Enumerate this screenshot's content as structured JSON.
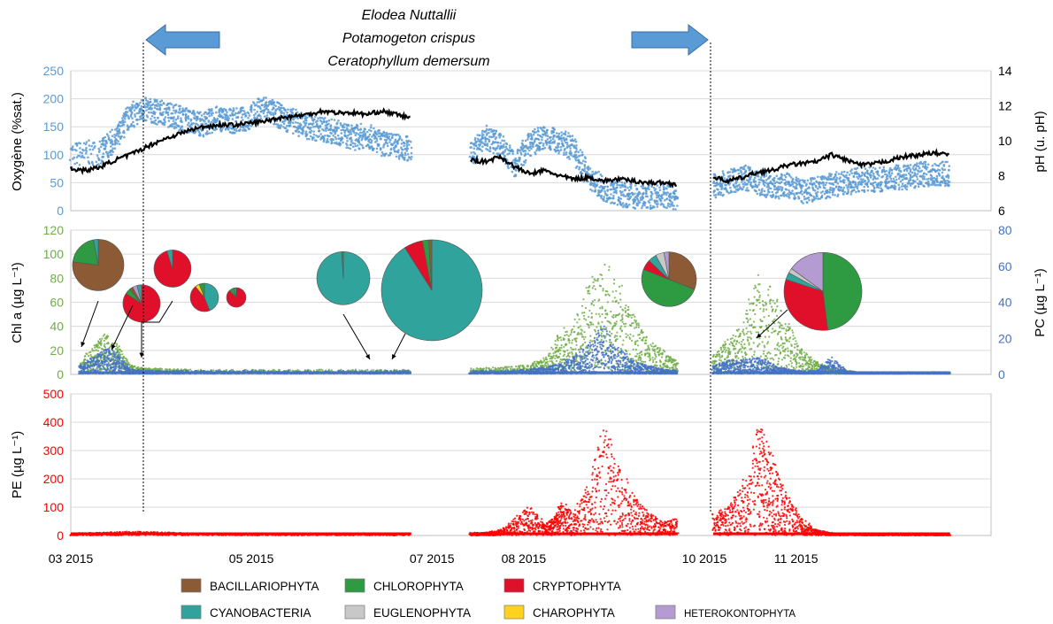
{
  "annotation": {
    "species": [
      "Elodea Nuttallii",
      "Potamogeton crispus",
      "Ceratophyllum demersum"
    ]
  },
  "colors": {
    "oxygen": "#5b9bd5",
    "ph": "#000000",
    "chla": "#70ad47",
    "pc": "#4472c4",
    "pe": "#ff0000",
    "arrow_fill": "#5b9bd5",
    "arrow_stroke": "#3a6ea5"
  },
  "x_axis": {
    "ticks": [
      {
        "t": 0,
        "label": "03 2015"
      },
      {
        "t": 61,
        "label": "05 2015"
      },
      {
        "t": 122,
        "label": "07 2015"
      },
      {
        "t": 153,
        "label": "08 2015"
      },
      {
        "t": 214,
        "label": "10 2015"
      },
      {
        "t": 245,
        "label": "11 2015"
      }
    ],
    "range_days": [
      0,
      300
    ]
  },
  "legend": {
    "items": [
      {
        "label": "BACILLARIOPHYTA",
        "color": "#8c5a34"
      },
      {
        "label": "CHLOROPHYTA",
        "color": "#2e9a41"
      },
      {
        "label": "CRYPTOPHYTA",
        "color": "#e0102a"
      },
      {
        "label": "CYANOBACTERIA",
        "color": "#30a39c"
      },
      {
        "label": "EUGLENOPHYTA",
        "color": "#c8c8c8"
      },
      {
        "label": "CHAROPHYTA",
        "color": "#ffd21f"
      },
      {
        "label": "HETEROKONTOPHYTA",
        "color": "#b49bd1"
      }
    ]
  },
  "chart_data": [
    {
      "type": "scatter",
      "ylabel": "Oxygène (%sat.)",
      "y2label": "pH (u. pH)",
      "ylim": [
        0,
        250
      ],
      "y2lim": [
        6,
        14
      ],
      "yticks": [
        0,
        50,
        100,
        150,
        200,
        250
      ],
      "y2ticks": [
        6,
        8,
        10,
        12,
        14
      ],
      "series": [
        {
          "axis": "left",
          "segments": [
            {
              "x": [
                0,
                10,
                15,
                20,
                25,
                30,
                35,
                40,
                45,
                50,
                55,
                60,
                65,
                70,
                75,
                80,
                85,
                90,
                95,
                100,
                105,
                110,
                115
              ],
              "y": [
                100,
                105,
                125,
                170,
                180,
                175,
                170,
                160,
                155,
                165,
                160,
                165,
                185,
                170,
                160,
                150,
                145,
                140,
                130,
                135,
                120,
                115,
                110
              ]
            },
            {
              "x": [
                135,
                140,
                145,
                150,
                155,
                160,
                165,
                170,
                175,
                180,
                185,
                190,
                195,
                200,
                205
              ],
              "y": [
                100,
                130,
                120,
                80,
                120,
                130,
                125,
                110,
                60,
                40,
                30,
                25,
                25,
                30,
                20
              ]
            },
            {
              "x": [
                217,
                222,
                227,
                232,
                237,
                242,
                247,
                252,
                257,
                262,
                267,
                272,
                277,
                282,
                287,
                292,
                297
              ],
              "y": [
                45,
                50,
                60,
                50,
                40,
                45,
                35,
                40,
                45,
                50,
                55,
                55,
                60,
                60,
                65,
                65,
                65
              ]
            }
          ]
        },
        {
          "axis": "right",
          "segments": [
            {
              "x": [
                0,
                5,
                10,
                15,
                20,
                25,
                30,
                35,
                40,
                45,
                50,
                55,
                60,
                65,
                70,
                75,
                80,
                85,
                90,
                95,
                100,
                105,
                110,
                115
              ],
              "y": [
                8.4,
                8.3,
                8.5,
                8.9,
                9.2,
                9.6,
                10.0,
                10.3,
                10.6,
                10.8,
                10.9,
                10.9,
                11.0,
                11.1,
                11.3,
                11.4,
                11.5,
                11.7,
                11.6,
                11.6,
                11.5,
                11.7,
                11.5,
                11.3
              ]
            },
            {
              "x": [
                135,
                140,
                145,
                150,
                155,
                160,
                165,
                170,
                175,
                180,
                185,
                190,
                195,
                200,
                205
              ],
              "y": [
                8.9,
                8.8,
                9.1,
                8.5,
                8.1,
                8.3,
                8.0,
                7.8,
                7.9,
                7.7,
                7.8,
                7.7,
                7.6,
                7.6,
                7.5
              ]
            },
            {
              "x": [
                217,
                222,
                227,
                232,
                237,
                242,
                247,
                252,
                257,
                262,
                267,
                272,
                277,
                282,
                287,
                292,
                297
              ],
              "y": [
                7.9,
                7.7,
                7.9,
                8.2,
                8.3,
                8.6,
                8.7,
                8.8,
                9.2,
                8.9,
                8.6,
                8.7,
                8.9,
                9.1,
                9.2,
                9.3,
                9.2
              ]
            }
          ]
        }
      ]
    },
    {
      "type": "scatter",
      "ylabel": "Chl a (µg L⁻¹)",
      "y2label": "PC (µg L⁻¹)",
      "ylim": [
        0,
        120
      ],
      "y2lim": [
        0,
        80
      ],
      "yticks": [
        0,
        20,
        40,
        60,
        80,
        100,
        120
      ],
      "y2ticks": [
        0,
        20,
        40,
        60,
        80
      ],
      "series": [
        {
          "axis": "left",
          "segments": [
            {
              "x": [
                3,
                8,
                12,
                16,
                20,
                25,
                30,
                40,
                60,
                80,
                100,
                115
              ],
              "y": [
                10,
                25,
                35,
                25,
                8,
                5,
                5,
                4,
                4,
                4,
                4,
                4
              ]
            },
            {
              "x": [
                135,
                145,
                155,
                160,
                165,
                170,
                175,
                180,
                185,
                190,
                195,
                200,
                205
              ],
              "y": [
                5,
                6,
                8,
                15,
                35,
                45,
                75,
                95,
                80,
                50,
                30,
                20,
                10
              ]
            },
            {
              "x": [
                217,
                222,
                227,
                232,
                237,
                242,
                247,
                252,
                257,
                262,
                267,
                272,
                280,
                290,
                297
              ],
              "y": [
                15,
                30,
                40,
                90,
                70,
                45,
                20,
                10,
                5,
                3,
                2,
                2,
                2,
                2,
                2
              ]
            }
          ]
        },
        {
          "axis": "right",
          "segments": [
            {
              "x": [
                3,
                8,
                12,
                16,
                20,
                25,
                30,
                40,
                60,
                80,
                100,
                115
              ],
              "y": [
                5,
                10,
                15,
                12,
                3,
                2,
                2,
                2,
                2,
                2,
                2,
                2
              ]
            },
            {
              "x": [
                135,
                145,
                155,
                160,
                165,
                170,
                175,
                180,
                185,
                190,
                195,
                200,
                205
              ],
              "y": [
                2,
                2,
                3,
                4,
                6,
                10,
                18,
                28,
                15,
                8,
                5,
                3,
                2
              ]
            },
            {
              "x": [
                217,
                222,
                227,
                232,
                237,
                242,
                247,
                252,
                257,
                262,
                267,
                272,
                280,
                290,
                297
              ],
              "y": [
                5,
                8,
                8,
                10,
                6,
                3,
                2,
                2,
                10,
                2,
                1,
                1,
                1,
                1,
                1
              ]
            }
          ]
        }
      ],
      "pies": [
        {
          "t": 8,
          "y": 91,
          "size": 29,
          "slices": [
            {
              "group": "BACILLARIOPHYTA",
              "value": 77
            },
            {
              "group": "CHLOROPHYTA",
              "value": 20
            },
            {
              "group": "CYANOBACTERIA",
              "value": 3
            }
          ]
        },
        {
          "t": 22,
          "y": 59,
          "size": 21,
          "slices": [
            {
              "group": "CRYPTOPHYTA",
              "value": 84
            },
            {
              "group": "CHLOROPHYTA",
              "value": 5
            },
            {
              "group": "BACILLARIOPHYTA",
              "value": 3
            },
            {
              "group": "HETEROKONTOPHYTA",
              "value": 4
            },
            {
              "group": "CYANOBACTERIA",
              "value": 4
            }
          ]
        },
        {
          "t": 32,
          "y": 88,
          "size": 21,
          "slices": [
            {
              "group": "CRYPTOPHYTA",
              "value": 95
            },
            {
              "group": "CYANOBACTERIA",
              "value": 5
            }
          ]
        },
        {
          "t": 45,
          "y": 64,
          "size": 16,
          "slices": [
            {
              "group": "CYANOBACTERIA",
              "value": 44
            },
            {
              "group": "CRYPTOPHYTA",
              "value": 45
            },
            {
              "group": "CHAROPHYTA",
              "value": 5
            },
            {
              "group": "CHLOROPHYTA",
              "value": 6
            }
          ]
        },
        {
          "t": 57,
          "y": 64,
          "size": 11,
          "slices": [
            {
              "group": "CRYPTOPHYTA",
              "value": 88
            },
            {
              "group": "CHLOROPHYTA",
              "value": 8
            },
            {
              "group": "CYANOBACTERIA",
              "value": 4
            }
          ]
        },
        {
          "t": 92,
          "y": 80,
          "size": 30,
          "slices": [
            {
              "group": "CYANOBACTERIA",
              "value": 99
            },
            {
              "group": "CHLOROPHYTA",
              "value": 1
            }
          ]
        },
        {
          "t": 122,
          "y": 70,
          "size": 57,
          "slices": [
            {
              "group": "CYANOBACTERIA",
              "value": 91
            },
            {
              "group": "CRYPTOPHYTA",
              "value": 6
            },
            {
              "group": "CHLOROPHYTA",
              "value": 2
            },
            {
              "group": "BACILLARIOPHYTA",
              "value": 1
            }
          ]
        },
        {
          "t": 195,
          "y": 79,
          "size": 31,
          "slices": [
            {
              "group": "BACILLARIOPHYTA",
              "value": 31
            },
            {
              "group": "CHLOROPHYTA",
              "value": 50
            },
            {
              "group": "CRYPTOPHYTA",
              "value": 6
            },
            {
              "group": "CYANOBACTERIA",
              "value": 5
            },
            {
              "group": "EUGLENOPHYTA",
              "value": 5
            },
            {
              "group": "HETEROKONTOPHYTA",
              "value": 3
            }
          ]
        },
        {
          "t": 247,
          "y": 69,
          "size": 44,
          "slices": [
            {
              "group": "CHLOROPHYTA",
              "value": 48
            },
            {
              "group": "CRYPTOPHYTA",
              "value": 32
            },
            {
              "group": "CYANOBACTERIA",
              "value": 3
            },
            {
              "group": "EUGLENOPHYTA",
              "value": 2
            },
            {
              "group": "HETEROKONTOPHYTA",
              "value": 15
            }
          ]
        }
      ]
    },
    {
      "type": "scatter",
      "ylabel": "PE (µg L⁻¹)",
      "ylim": [
        0,
        500
      ],
      "yticks": [
        0,
        100,
        200,
        300,
        400,
        500
      ],
      "series": [
        {
          "axis": "left",
          "segments": [
            {
              "x": [
                0,
                10,
                20,
                30,
                40,
                60,
                80,
                100,
                115
              ],
              "y": [
                8,
                10,
                15,
                12,
                8,
                5,
                5,
                5,
                8
              ]
            },
            {
              "x": [
                135,
                140,
                145,
                150,
                155,
                160,
                163,
                166,
                170,
                175,
                180,
                185,
                190,
                195,
                200,
                205
              ],
              "y": [
                10,
                10,
                20,
                60,
                110,
                40,
                60,
                120,
                80,
                200,
                420,
                250,
                150,
                80,
                50,
                60
              ]
            },
            {
              "x": [
                217,
                222,
                227,
                232,
                235,
                238,
                242,
                247,
                252,
                257,
                262,
                270,
                280,
                290,
                297
              ],
              "y": [
                80,
                100,
                180,
                400,
                350,
                250,
                150,
                60,
                20,
                10,
                5,
                3,
                3,
                3,
                3
              ]
            }
          ]
        }
      ]
    }
  ]
}
